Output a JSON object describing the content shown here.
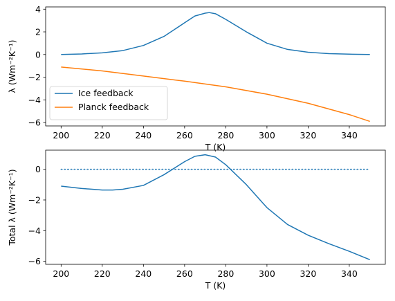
{
  "chart_data": [
    {
      "type": "line",
      "title": "",
      "xlabel": "T (K)",
      "ylabel": "λ (Wm⁻²K⁻¹)",
      "xlim": [
        192.5,
        357.5
      ],
      "ylim": [
        -6.3,
        4.2
      ],
      "xticks": [
        200,
        220,
        240,
        260,
        280,
        300,
        320,
        340
      ],
      "yticks": [
        -6,
        -4,
        -2,
        0,
        2,
        4
      ],
      "grid": false,
      "legend": "lower-left",
      "series": [
        {
          "name": "Ice feedback",
          "color": "#1f77b4",
          "x": [
            200,
            210,
            220,
            230,
            240,
            250,
            260,
            265,
            270,
            272,
            275,
            280,
            290,
            300,
            310,
            320,
            330,
            340,
            350
          ],
          "y": [
            0.0,
            0.05,
            0.15,
            0.35,
            0.8,
            1.6,
            2.8,
            3.4,
            3.65,
            3.7,
            3.6,
            3.1,
            2.0,
            1.0,
            0.45,
            0.2,
            0.08,
            0.03,
            0.0
          ]
        },
        {
          "name": "Planck feedback",
          "color": "#ff7f0e",
          "x": [
            200,
            220,
            240,
            260,
            280,
            300,
            320,
            340,
            350
          ],
          "y": [
            -1.1,
            -1.45,
            -1.9,
            -2.35,
            -2.85,
            -3.5,
            -4.3,
            -5.3,
            -5.9
          ]
        }
      ]
    },
    {
      "type": "line",
      "title": "",
      "xlabel": "T (K)",
      "ylabel": "Total λ (Wm⁻²K⁻¹)",
      "xlim": [
        192.5,
        357.5
      ],
      "ylim": [
        -6.2,
        1.25
      ],
      "xticks": [
        200,
        220,
        240,
        260,
        280,
        300,
        320,
        340
      ],
      "yticks": [
        -6,
        -4,
        -2,
        0
      ],
      "grid": false,
      "series": [
        {
          "color": "#1f77b4",
          "style": "solid",
          "x": [
            200,
            210,
            220,
            225,
            230,
            240,
            250,
            260,
            265,
            270,
            275,
            280,
            290,
            300,
            310,
            320,
            330,
            340,
            350
          ],
          "y": [
            -1.1,
            -1.25,
            -1.35,
            -1.35,
            -1.3,
            -1.05,
            -0.35,
            0.5,
            0.85,
            0.95,
            0.8,
            0.3,
            -1.0,
            -2.5,
            -3.6,
            -4.3,
            -4.85,
            -5.35,
            -5.9
          ]
        },
        {
          "color": "#1f77b4",
          "style": "dotted",
          "x": [
            200,
            350
          ],
          "y": [
            0,
            0
          ]
        }
      ]
    }
  ]
}
